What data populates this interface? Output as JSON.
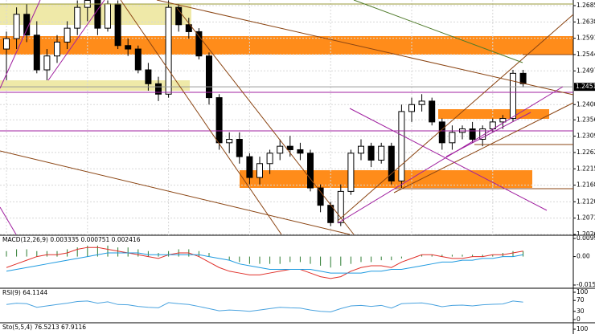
{
  "chart_data": [
    {
      "type": "candlestick",
      "open": [
        1.256,
        1.259,
        1.266,
        1.26,
        1.25,
        1.254,
        1.258,
        1.262,
        1.268,
        1.27,
        1.262,
        1.269,
        1.257,
        1.256,
        1.25,
        1.246,
        1.243,
        1.268,
        1.263,
        1.261,
        1.254,
        1.242,
        1.229,
        1.23,
        1.225,
        1.219,
        1.223,
        1.226,
        1.228,
        1.227,
        1.226,
        1.216,
        1.211,
        1.206,
        1.215,
        1.226,
        1.228,
        1.224,
        1.228,
        1.218,
        1.238,
        1.24,
        1.241,
        1.235,
        1.229,
        1.232,
        1.233,
        1.23,
        1.233,
        1.235,
        1.236,
        1.249
      ],
      "high": [
        1.261,
        1.268,
        1.269,
        1.264,
        1.256,
        1.26,
        1.264,
        1.27,
        1.272,
        1.272,
        1.27,
        1.27,
        1.259,
        1.257,
        1.252,
        1.248,
        1.27,
        1.269,
        1.265,
        1.262,
        1.255,
        1.243,
        1.232,
        1.232,
        1.226,
        1.225,
        1.227,
        1.23,
        1.231,
        1.229,
        1.227,
        1.217,
        1.212,
        1.217,
        1.227,
        1.23,
        1.229,
        1.229,
        1.229,
        1.24,
        1.242,
        1.243,
        1.242,
        1.236,
        1.234,
        1.234,
        1.235,
        1.234,
        1.236,
        1.237,
        1.25,
        1.25
      ],
      "low": [
        1.247,
        1.256,
        1.258,
        1.249,
        1.247,
        1.252,
        1.256,
        1.26,
        1.264,
        1.26,
        1.261,
        1.256,
        1.254,
        1.249,
        1.244,
        1.241,
        1.242,
        1.261,
        1.259,
        1.253,
        1.24,
        1.227,
        1.226,
        1.223,
        1.217,
        1.217,
        1.22,
        1.224,
        1.225,
        1.224,
        1.215,
        1.209,
        1.205,
        1.205,
        1.214,
        1.224,
        1.222,
        1.223,
        1.217,
        1.216,
        1.235,
        1.238,
        1.234,
        1.227,
        1.227,
        1.23,
        1.229,
        1.228,
        1.232,
        1.233,
        1.235,
        1.245
      ],
      "close": [
        1.259,
        1.266,
        1.26,
        1.25,
        1.254,
        1.258,
        1.262,
        1.268,
        1.27,
        1.262,
        1.269,
        1.257,
        1.256,
        1.25,
        1.246,
        1.243,
        1.268,
        1.263,
        1.261,
        1.254,
        1.242,
        1.229,
        1.23,
        1.225,
        1.219,
        1.223,
        1.226,
        1.228,
        1.227,
        1.226,
        1.216,
        1.211,
        1.206,
        1.215,
        1.226,
        1.228,
        1.224,
        1.228,
        1.218,
        1.238,
        1.24,
        1.241,
        1.235,
        1.229,
        1.232,
        1.233,
        1.23,
        1.233,
        1.235,
        1.236,
        1.249,
        1.246
      ],
      "current_price": 1.24511,
      "ylim": [
        1.2026,
        1.2685
      ],
      "yticks": [
        {
          "value": 1.2685,
          "label": "1.26850"
        },
        {
          "value": 1.2638,
          "label": "1.26380"
        },
        {
          "value": 1.2591,
          "label": "1.25910"
        },
        {
          "value": 1.2544,
          "label": "1.25440"
        },
        {
          "value": 1.2497,
          "label": "1.24970"
        },
        {
          "value": 1.24,
          "label": "1.24000"
        },
        {
          "value": 1.2356,
          "label": "1.23560"
        },
        {
          "value": 1.2309,
          "label": "1.23090"
        },
        {
          "value": 1.2262,
          "label": "1.22620"
        },
        {
          "value": 1.2215,
          "label": "1.22150"
        },
        {
          "value": 1.2168,
          "label": "1.21680"
        },
        {
          "value": 1.212,
          "label": "1.21200"
        },
        {
          "value": 1.2073,
          "label": "1.20730"
        },
        {
          "value": 1.2026,
          "label": "1.20260"
        }
      ],
      "grid": true
    },
    {
      "type": "macd",
      "title": "MACD(12,26,9) 0.003335 0.000751 0.002416",
      "ylim": [
        -0.01556,
        0.009916
      ],
      "yticks": [
        0.009916,
        {
          "value": 0,
          "label": "0.00"
        },
        -0.01556
      ],
      "histogram": {
        "color": "#2e7d32",
        "values": [
          0.003,
          0.004,
          0.004,
          0.003,
          0.003,
          0.003,
          0.004,
          0.005,
          0.006,
          0.006,
          0.006,
          0.005,
          0.005,
          0.004,
          0.003,
          0.002,
          0.003,
          0.004,
          0.004,
          0.003,
          0.002,
          0.0,
          -0.002,
          -0.003,
          -0.004,
          -0.004,
          -0.004,
          -0.004,
          -0.003,
          -0.003,
          -0.004,
          -0.005,
          -0.006,
          -0.005,
          -0.004,
          -0.003,
          -0.003,
          -0.002,
          -0.002,
          -0.001,
          0.0,
          0.001,
          0.001,
          0.001,
          0.001,
          0.001,
          0.001,
          0.001,
          0.001,
          0.002,
          0.003,
          0.003
        ]
      },
      "series": [
        {
          "color": "#e0302a",
          "values": [
            -0.006,
            -0.004,
            -0.002,
            0.0,
            0.001,
            0.001,
            0.002,
            0.004,
            0.005,
            0.005,
            0.004,
            0.003,
            0.002,
            0.001,
            0.0,
            -0.001,
            0.001,
            0.002,
            0.002,
            0.0,
            -0.003,
            -0.006,
            -0.008,
            -0.009,
            -0.01,
            -0.01,
            -0.009,
            -0.008,
            -0.007,
            -0.007,
            -0.009,
            -0.011,
            -0.012,
            -0.011,
            -0.008,
            -0.006,
            -0.005,
            -0.005,
            -0.006,
            -0.003,
            -0.001,
            0.001,
            0.001,
            0.0,
            -0.001,
            -0.001,
            0.0,
            0.0,
            0.001,
            0.001,
            0.002,
            0.003
          ]
        },
        {
          "color": "#1e9ae0",
          "values": [
            -0.008,
            -0.007,
            -0.006,
            -0.005,
            -0.004,
            -0.003,
            -0.002,
            -0.001,
            0.0,
            0.001,
            0.002,
            0.002,
            0.002,
            0.002,
            0.001,
            0.001,
            0.001,
            0.001,
            0.001,
            0.001,
            0.0,
            -0.001,
            -0.002,
            -0.004,
            -0.005,
            -0.006,
            -0.007,
            -0.007,
            -0.007,
            -0.007,
            -0.007,
            -0.008,
            -0.009,
            -0.009,
            -0.009,
            -0.009,
            -0.008,
            -0.008,
            -0.007,
            -0.007,
            -0.006,
            -0.005,
            -0.004,
            -0.003,
            -0.003,
            -0.002,
            -0.002,
            -0.001,
            -0.001,
            0.0,
            0.0,
            0.001
          ]
        }
      ]
    },
    {
      "type": "line",
      "title": "RSI(9) 64.1144",
      "ylim": [
        0,
        100
      ],
      "yticks": [
        100,
        70,
        30,
        0
      ],
      "series": [
        {
          "color": "#4aa3df",
          "values": [
            55,
            60,
            58,
            45,
            50,
            55,
            60,
            66,
            68,
            60,
            65,
            55,
            54,
            48,
            45,
            43,
            62,
            58,
            55,
            48,
            40,
            32,
            35,
            33,
            30,
            35,
            40,
            45,
            43,
            42,
            35,
            30,
            28,
            40,
            50,
            52,
            48,
            52,
            42,
            58,
            60,
            61,
            55,
            47,
            52,
            53,
            50,
            54,
            56,
            57,
            68,
            64.1144
          ]
        }
      ]
    },
    {
      "type": "line",
      "title": "Sto(5,5,4) 76.5213 67.9116",
      "ylim": [
        0,
        100
      ],
      "yticks": [
        100
      ],
      "series": []
    }
  ]
}
